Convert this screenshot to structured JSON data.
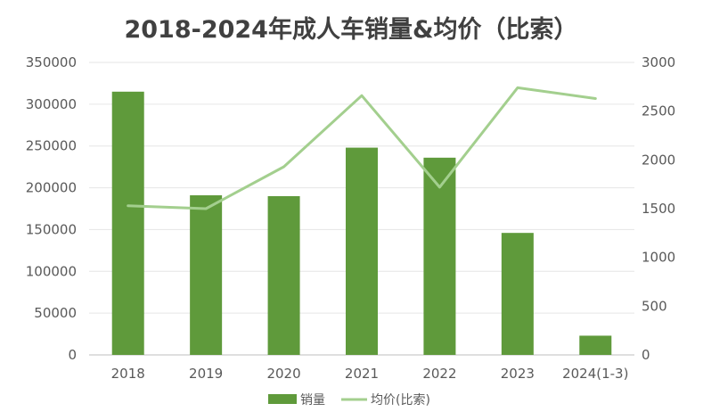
{
  "chart_data": {
    "type": "bar",
    "title": "2018-2024年成人车销量&均价（比索）",
    "categories": [
      "2018",
      "2019",
      "2020",
      "2021",
      "2022",
      "2023",
      "2024(1-3)"
    ],
    "series": [
      {
        "name": "销量",
        "type": "bar",
        "axis": "left",
        "color": "#5f9a3b",
        "values": [
          315000,
          191000,
          190000,
          248000,
          236000,
          146000,
          23000
        ]
      },
      {
        "name": "均价(比索)",
        "type": "line",
        "axis": "right",
        "color": "#a3cf8e",
        "values": [
          1530,
          1500,
          1930,
          2660,
          1720,
          2740,
          2630
        ]
      }
    ],
    "y_left": {
      "range": [
        0,
        350000
      ],
      "ticks": [
        "0",
        "50000",
        "100000",
        "150000",
        "200000",
        "250000",
        "300000",
        "350000"
      ]
    },
    "y_right": {
      "range": [
        0,
        3000
      ],
      "ticks": [
        "0",
        "500",
        "1000",
        "1500",
        "2000",
        "2500",
        "3000"
      ]
    },
    "grid": true,
    "legend_position": "bottom"
  }
}
